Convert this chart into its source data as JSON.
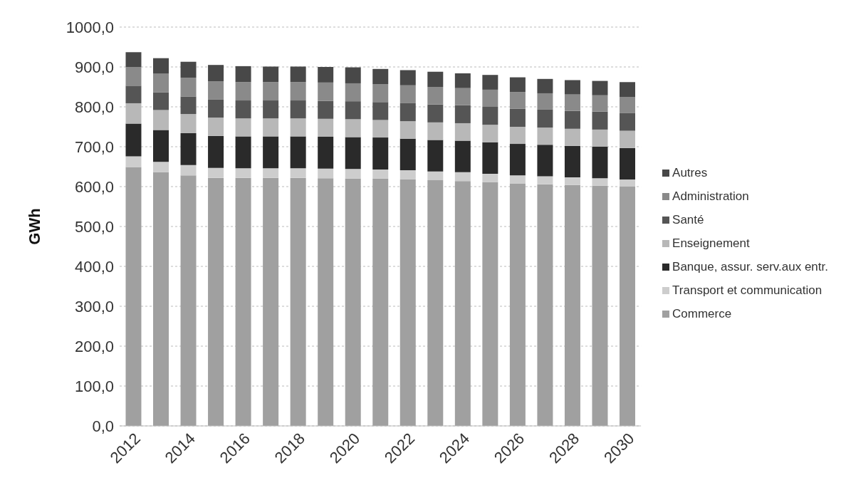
{
  "chart_data": {
    "type": "bar",
    "stacked": true,
    "ylabel": "GWh",
    "categories": [
      "2012",
      null,
      "2014",
      null,
      "2016",
      null,
      "2018",
      null,
      "2020",
      null,
      "2022",
      null,
      "2024",
      null,
      "2026",
      null,
      "2028",
      null,
      "2030"
    ],
    "series": [
      {
        "name": "Commerce",
        "color": "#a0a0a0",
        "values": [
          649,
          636,
          628,
          622,
          622,
          622,
          622,
          621,
          620,
          620,
          618,
          616,
          614,
          611,
          608,
          606,
          604,
          602,
          600
        ]
      },
      {
        "name": "Transport et communication",
        "color": "#cdcdcd",
        "values": [
          27,
          26,
          26,
          25,
          24,
          24,
          24,
          24,
          24,
          23,
          23,
          22,
          22,
          21,
          20,
          20,
          19,
          19,
          18
        ]
      },
      {
        "name": "Banque, assur. serv.aux entr.",
        "color": "#2a2a2a",
        "values": [
          82,
          80,
          80,
          80,
          80,
          80,
          80,
          80,
          80,
          80,
          79,
          79,
          79,
          79,
          79,
          79,
          79,
          79,
          79
        ]
      },
      {
        "name": "Enseignement",
        "color": "#b8b8b8",
        "values": [
          51,
          50,
          48,
          46,
          45,
          45,
          45,
          45,
          45,
          44,
          44,
          44,
          44,
          44,
          43,
          43,
          43,
          43,
          43
        ]
      },
      {
        "name": "Santé",
        "color": "#555555",
        "values": [
          44,
          44,
          44,
          45,
          45,
          45,
          45,
          45,
          45,
          45,
          45,
          45,
          45,
          45,
          45,
          45,
          45,
          45,
          45
        ]
      },
      {
        "name": "Administration",
        "color": "#8a8a8a",
        "values": [
          47,
          47,
          47,
          46,
          46,
          46,
          46,
          46,
          45,
          45,
          45,
          44,
          43,
          43,
          42,
          41,
          41,
          41,
          40
        ]
      },
      {
        "name": "Autres",
        "color": "#484848",
        "values": [
          37,
          39,
          40,
          41,
          40,
          39,
          39,
          39,
          40,
          38,
          38,
          38,
          37,
          37,
          37,
          36,
          36,
          36,
          37
        ]
      }
    ],
    "ylim": [
      0,
      1000
    ],
    "yticks": [
      {
        "value": 0,
        "label": "0,0"
      },
      {
        "value": 100,
        "label": "100,0"
      },
      {
        "value": 200,
        "label": "200,0"
      },
      {
        "value": 300,
        "label": "300,0"
      },
      {
        "value": 400,
        "label": "400,0"
      },
      {
        "value": 500,
        "label": "500,0"
      },
      {
        "value": 600,
        "label": "600,0"
      },
      {
        "value": 700,
        "label": "700,0"
      },
      {
        "value": 800,
        "label": "800,0"
      },
      {
        "value": 900,
        "label": "900,0"
      },
      {
        "value": 1000,
        "label": "1000,0"
      }
    ],
    "grid": "y",
    "legend": "right"
  }
}
